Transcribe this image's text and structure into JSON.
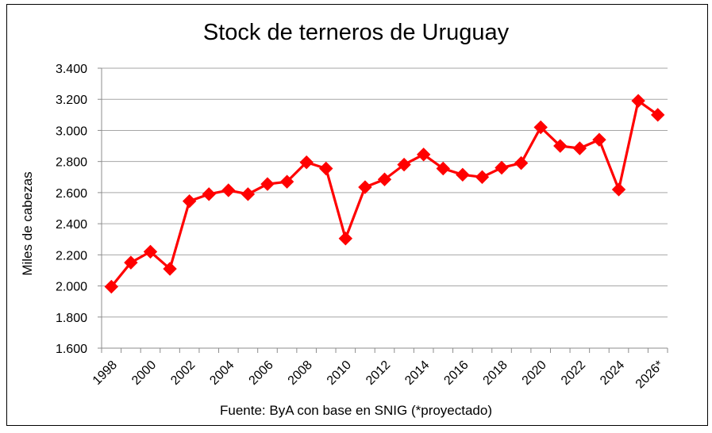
{
  "chart_data": {
    "type": "line",
    "title": "Stock de terneros de Uruguay",
    "ylabel": "Miles de cabezas",
    "xlabel": "",
    "source": "Fuente: ByA con base en SNIG (*proyectado)",
    "ylim": [
      1600,
      3400
    ],
    "yticks": [
      "1.600",
      "1.800",
      "2.000",
      "2.200",
      "2.400",
      "2.600",
      "2.800",
      "3.000",
      "3.200",
      "3.400"
    ],
    "ytick_values": [
      1600,
      1800,
      2000,
      2200,
      2400,
      2600,
      2800,
      3000,
      3200,
      3400
    ],
    "x": [
      "1998",
      "1999",
      "2000",
      "2001",
      "2002",
      "2003",
      "2004",
      "2005",
      "2006",
      "2007",
      "2008",
      "2009",
      "2010",
      "2011",
      "2012",
      "2013",
      "2014",
      "2015",
      "2016",
      "2017",
      "2018",
      "2019",
      "2020",
      "2021",
      "2022",
      "2023",
      "2024",
      "2025",
      "2026*"
    ],
    "xtick_labels": [
      "1998",
      "2000",
      "2002",
      "2004",
      "2006",
      "2008",
      "2010",
      "2012",
      "2014",
      "2016",
      "2018",
      "2020",
      "2022",
      "2024",
      "2026*"
    ],
    "series": [
      {
        "color": "#ff0000",
        "values": [
          1995,
          2150,
          2220,
          2110,
          2545,
          2590,
          2615,
          2590,
          2655,
          2670,
          2795,
          2755,
          2305,
          2635,
          2685,
          2780,
          2845,
          2755,
          2715,
          2700,
          2760,
          2790,
          3020,
          2900,
          2885,
          2940,
          2620,
          3190,
          3100
        ]
      }
    ],
    "grid": true,
    "legend": "none"
  }
}
